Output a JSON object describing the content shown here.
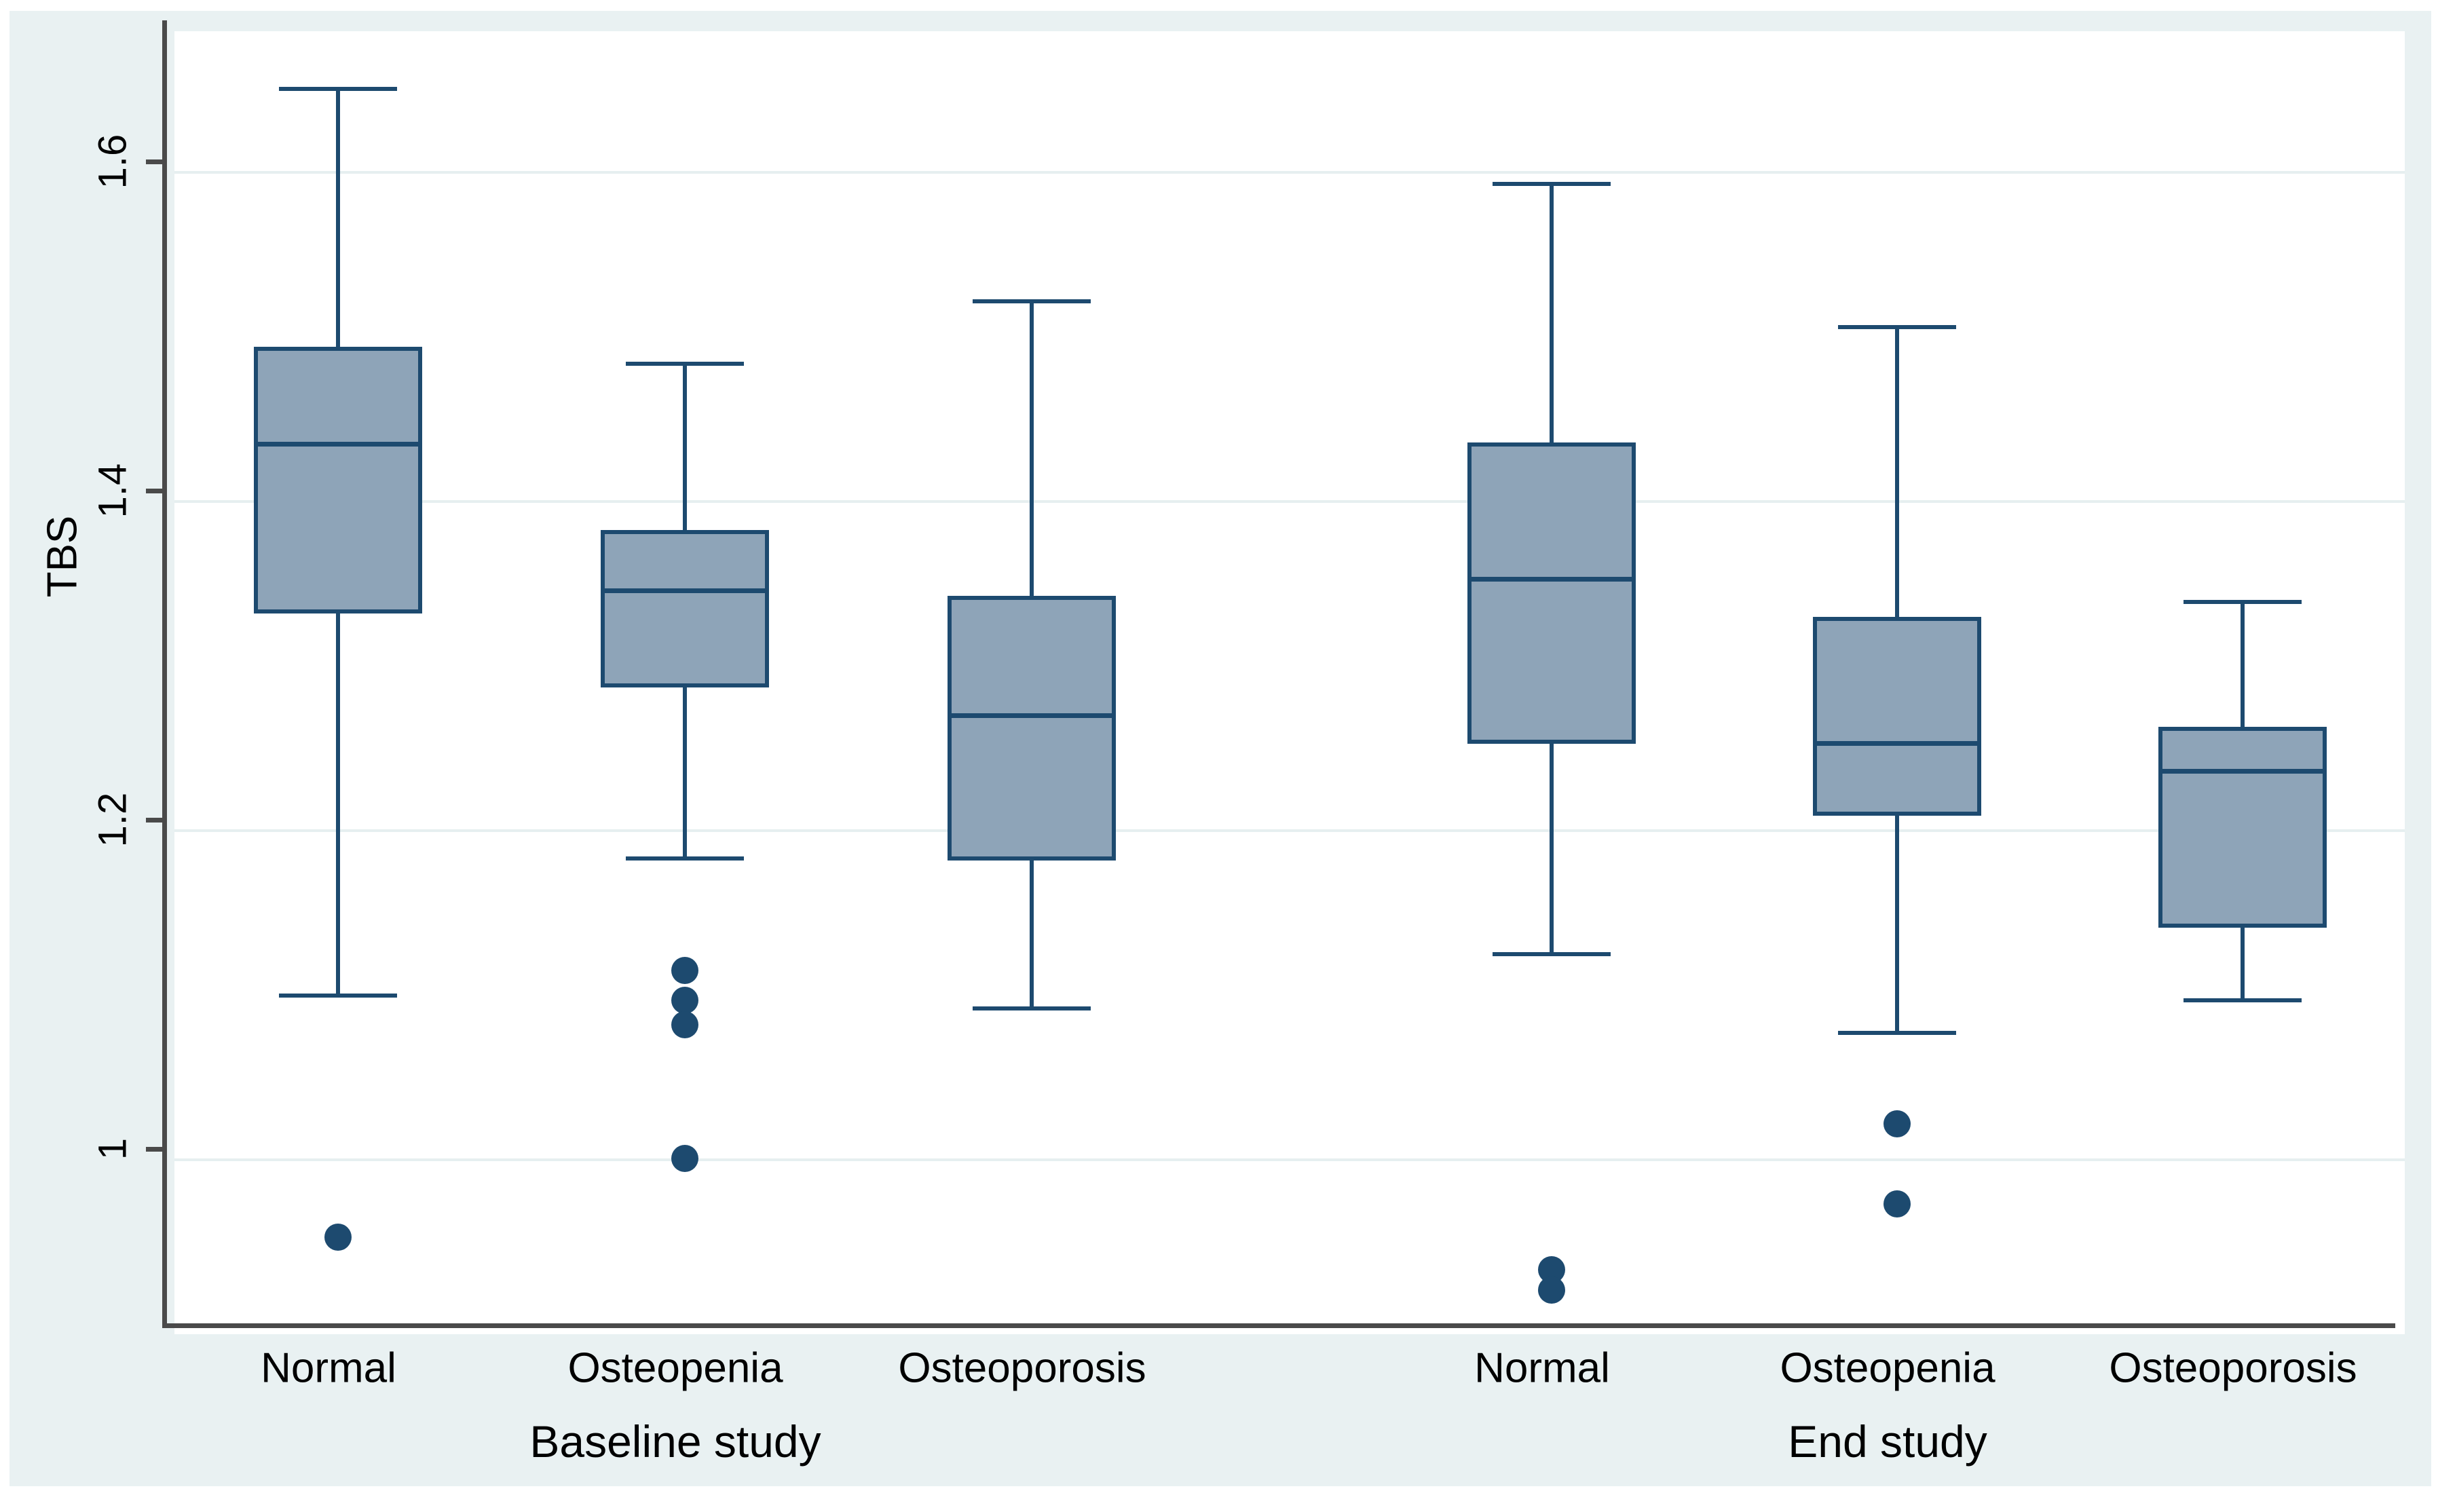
{
  "chart_data": {
    "type": "box",
    "title": "",
    "ylabel": "TBS",
    "xlabel": "",
    "ylim": [
      0.894,
      1.686
    ],
    "y_ticks": [
      1,
      1.2,
      1.4,
      1.6
    ],
    "y_tick_labels": [
      "1",
      "1.2",
      "1.4",
      "1.6"
    ],
    "grid": true,
    "legend": "none",
    "groups": [
      {
        "label": "Baseline study",
        "categories": [
          "Normal",
          "Osteopenia",
          "Osteoporosis"
        ]
      },
      {
        "label": "End study",
        "categories": [
          "Normal",
          "Osteopenia",
          "Osteoporosis"
        ]
      }
    ],
    "series": [
      {
        "group": "Baseline study",
        "category": "Normal",
        "whisker_low": 1.1,
        "q1": 1.332,
        "median": 1.435,
        "q3": 1.494,
        "whisker_high": 1.651,
        "outliers": [
          0.953
        ]
      },
      {
        "group": "Baseline study",
        "category": "Osteopenia",
        "whisker_low": 1.183,
        "q1": 1.287,
        "median": 1.346,
        "q3": 1.383,
        "whisker_high": 1.484,
        "outliers": [
          1.115,
          1.097,
          1.082,
          1.001
        ]
      },
      {
        "group": "Baseline study",
        "category": "Osteoporosis",
        "whisker_low": 1.092,
        "q1": 1.182,
        "median": 1.27,
        "q3": 1.343,
        "whisker_high": 1.522,
        "outliers": []
      },
      {
        "group": "End study",
        "category": "Normal",
        "whisker_low": 1.125,
        "q1": 1.253,
        "median": 1.353,
        "q3": 1.436,
        "whisker_high": 1.593,
        "outliers": [
          0.933,
          0.921
        ]
      },
      {
        "group": "End study",
        "category": "Osteopenia",
        "whisker_low": 1.077,
        "q1": 1.209,
        "median": 1.253,
        "q3": 1.33,
        "whisker_high": 1.506,
        "outliers": [
          1.022,
          0.973
        ]
      },
      {
        "group": "End study",
        "category": "Osteoporosis",
        "whisker_low": 1.097,
        "q1": 1.141,
        "median": 1.236,
        "q3": 1.263,
        "whisker_high": 1.339,
        "outliers": []
      }
    ],
    "colors": {
      "box_fill": "#8ea4b8",
      "box_border": "#1d4a6f",
      "outlier": "#1d4a6f",
      "gridline": "#e6eff0",
      "axis": "#4a4a4a",
      "background": "#e9f1f2",
      "plot_background": "#ffffff",
      "text": "#000000"
    }
  }
}
